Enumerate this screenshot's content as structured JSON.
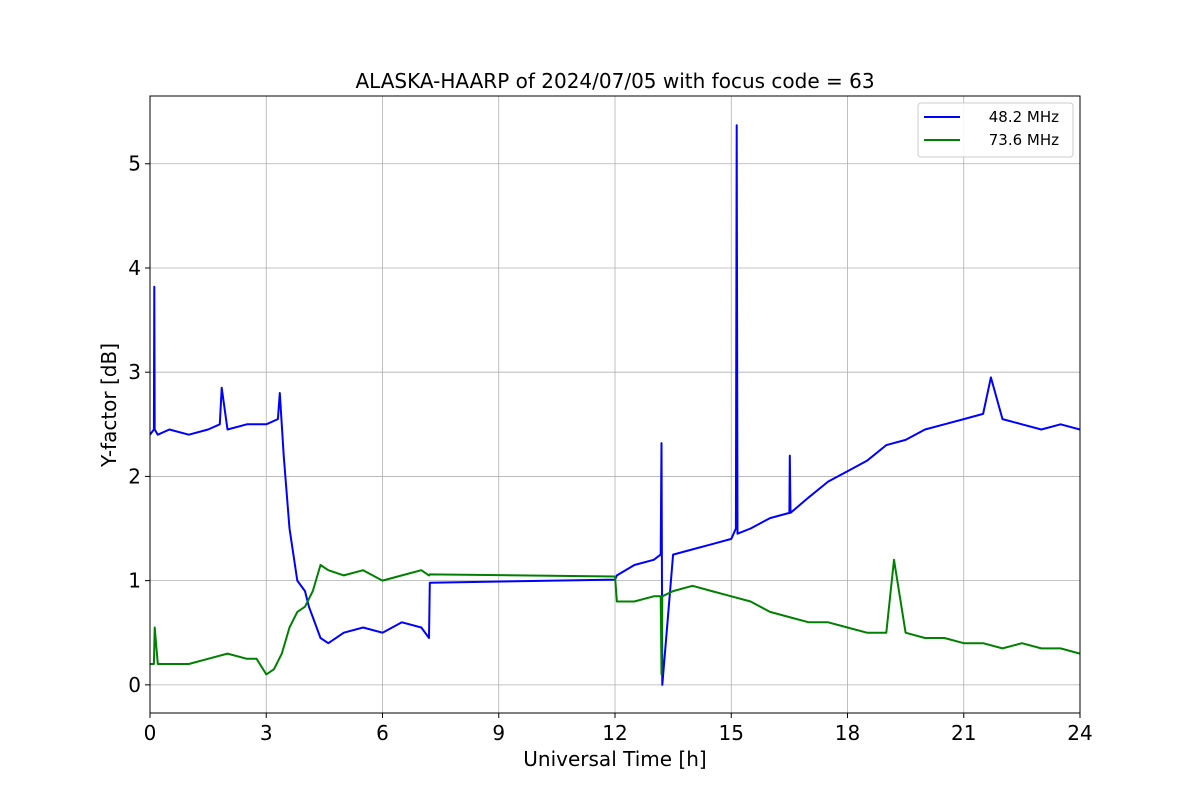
{
  "chart_data": {
    "type": "line",
    "title": "ALASKA-HAARP of 2024/07/05 with focus code = 63",
    "xlabel": "Universal Time [h]",
    "ylabel": "Y-factor [dB]",
    "xlim": [
      0,
      24
    ],
    "ylim": [
      -0.27,
      5.65
    ],
    "xticks": [
      0,
      3,
      6,
      9,
      12,
      15,
      18,
      21,
      24
    ],
    "xtick_labels": [
      "0",
      "3",
      "6",
      "9",
      "12",
      "15",
      "18",
      "21",
      "24"
    ],
    "yticks": [
      0,
      1,
      2,
      3,
      4,
      5
    ],
    "ytick_labels": [
      "0",
      "1",
      "2",
      "3",
      "4",
      "5"
    ],
    "grid": true,
    "legend_position": "top-right",
    "series": [
      {
        "name": "48.2 MHz",
        "color": "#0000ff",
        "x": [
          0.0,
          0.1,
          0.11,
          0.12,
          0.2,
          0.5,
          1.0,
          1.5,
          1.8,
          1.85,
          2.0,
          2.5,
          3.0,
          3.3,
          3.35,
          3.45,
          3.6,
          3.8,
          4.0,
          4.1,
          4.2,
          4.4,
          4.6,
          5.0,
          5.5,
          6.0,
          6.5,
          7.0,
          7.2,
          7.22,
          12.0,
          12.05,
          12.5,
          13.0,
          13.18,
          13.2,
          13.22,
          13.5,
          14.0,
          14.5,
          15.0,
          15.12,
          15.14,
          15.16,
          15.5,
          16.0,
          16.5,
          16.51,
          16.53,
          17.0,
          17.5,
          18.0,
          18.5,
          19.0,
          19.5,
          20.0,
          20.5,
          21.0,
          21.5,
          21.7,
          22.0,
          22.5,
          23.0,
          23.5,
          24.0
        ],
        "values": [
          2.4,
          2.45,
          3.82,
          2.45,
          2.4,
          2.45,
          2.4,
          2.45,
          2.5,
          2.85,
          2.45,
          2.5,
          2.5,
          2.55,
          2.8,
          2.2,
          1.5,
          1.0,
          0.9,
          0.75,
          0.65,
          0.45,
          0.4,
          0.5,
          0.55,
          0.5,
          0.6,
          0.55,
          0.45,
          0.98,
          1.01,
          1.05,
          1.15,
          1.2,
          1.25,
          2.32,
          0.0,
          1.25,
          1.3,
          1.35,
          1.4,
          1.5,
          5.37,
          1.45,
          1.5,
          1.6,
          1.65,
          2.2,
          1.65,
          1.8,
          1.95,
          2.05,
          2.15,
          2.3,
          2.35,
          2.45,
          2.5,
          2.55,
          2.6,
          2.95,
          2.55,
          2.5,
          2.45,
          2.5,
          2.45
        ]
      },
      {
        "name": "73.6 MHz",
        "color": "#008000",
        "x": [
          0.0,
          0.1,
          0.12,
          0.2,
          0.5,
          1.0,
          1.5,
          2.0,
          2.5,
          2.75,
          3.0,
          3.2,
          3.4,
          3.6,
          3.8,
          4.0,
          4.2,
          4.4,
          4.6,
          5.0,
          5.5,
          6.0,
          6.5,
          7.0,
          7.2,
          7.22,
          12.0,
          12.05,
          12.5,
          13.0,
          13.18,
          13.2,
          13.22,
          13.5,
          14.0,
          14.5,
          15.0,
          15.5,
          16.0,
          16.5,
          17.0,
          17.5,
          18.0,
          18.5,
          19.0,
          19.2,
          19.5,
          20.0,
          20.5,
          21.0,
          21.5,
          22.0,
          22.5,
          23.0,
          23.5,
          24.0
        ],
        "values": [
          0.2,
          0.2,
          0.55,
          0.2,
          0.2,
          0.2,
          0.25,
          0.3,
          0.25,
          0.25,
          0.1,
          0.15,
          0.3,
          0.55,
          0.7,
          0.75,
          0.9,
          1.15,
          1.1,
          1.05,
          1.1,
          1.0,
          1.05,
          1.1,
          1.05,
          1.06,
          1.04,
          0.8,
          0.8,
          0.85,
          0.85,
          0.1,
          0.85,
          0.9,
          0.95,
          0.9,
          0.85,
          0.8,
          0.7,
          0.65,
          0.6,
          0.6,
          0.55,
          0.5,
          0.5,
          1.2,
          0.5,
          0.45,
          0.45,
          0.4,
          0.4,
          0.35,
          0.4,
          0.35,
          0.35,
          0.3
        ]
      }
    ]
  }
}
